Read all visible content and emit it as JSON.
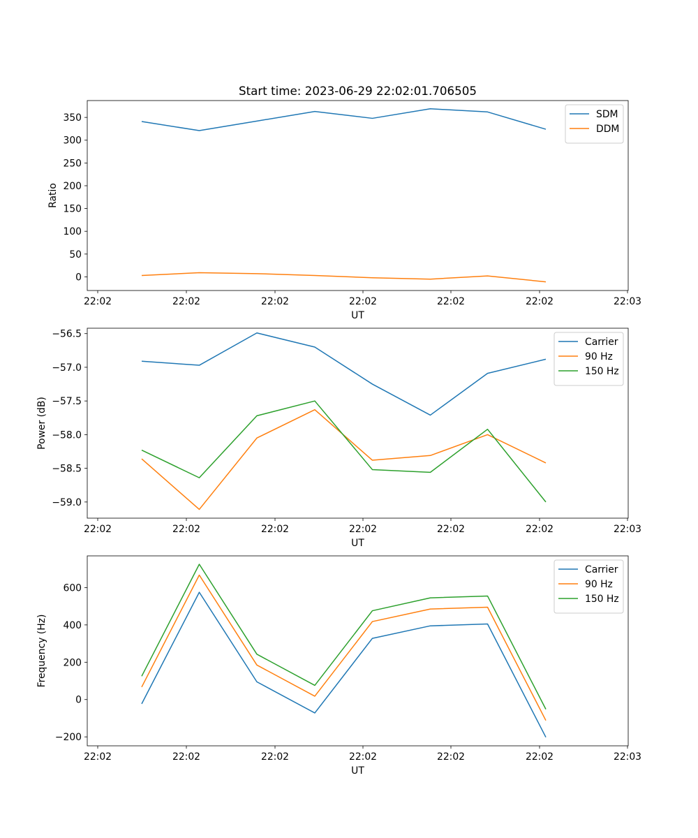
{
  "chart_data": [
    {
      "type": "line",
      "title": "Start time: 2023-06-29 22:02:01.706505",
      "xlabel": "UT",
      "ylabel": "Ratio",
      "x_tick_labels": [
        "22:02",
        "22:02",
        "22:02",
        "22:02",
        "22:02",
        "22:02",
        "22:03"
      ],
      "y_ticks": [
        0,
        50,
        100,
        150,
        200,
        250,
        300,
        350
      ],
      "ylim": [
        -30,
        387
      ],
      "grid": false,
      "legend_position": "top-right",
      "series": [
        {
          "name": "SDM",
          "color": "#1f77b4",
          "values": [
            341,
            321,
            342,
            363,
            348,
            369,
            362,
            324
          ]
        },
        {
          "name": "DDM",
          "color": "#ff7f0e",
          "values": [
            3,
            9,
            7,
            3,
            -2,
            -5,
            2,
            -11
          ]
        }
      ]
    },
    {
      "type": "line",
      "title": "",
      "xlabel": "UT",
      "ylabel": "Power (dB)",
      "x_tick_labels": [
        "22:02",
        "22:02",
        "22:02",
        "22:02",
        "22:02",
        "22:02",
        "22:03"
      ],
      "y_ticks": [
        -59.0,
        -58.5,
        -58.0,
        -57.5,
        -57.0,
        -56.5
      ],
      "y_tick_labels": [
        "−59.0",
        "−58.5",
        "−58.0",
        "−57.5",
        "−57.0",
        "−56.5"
      ],
      "ylim": [
        -59.24,
        -56.42
      ],
      "grid": false,
      "legend_position": "top-right",
      "series": [
        {
          "name": "Carrier",
          "color": "#1f77b4",
          "values": [
            -56.91,
            -56.97,
            -56.49,
            -56.7,
            -57.25,
            -57.71,
            -57.09,
            -56.88
          ]
        },
        {
          "name": "90 Hz",
          "color": "#ff7f0e",
          "values": [
            -58.36,
            -59.11,
            -58.05,
            -57.63,
            -58.38,
            -58.31,
            -58.0,
            -58.42
          ]
        },
        {
          "name": "150 Hz",
          "color": "#2ca02c",
          "values": [
            -58.23,
            -58.64,
            -57.72,
            -57.5,
            -58.52,
            -58.56,
            -57.92,
            -59.0
          ]
        }
      ]
    },
    {
      "type": "line",
      "title": "",
      "xlabel": "UT",
      "ylabel": "Frequency (Hz)",
      "x_tick_labels": [
        "22:02",
        "22:02",
        "22:02",
        "22:02",
        "22:02",
        "22:02",
        "22:03"
      ],
      "y_ticks": [
        -200,
        0,
        200,
        400,
        600
      ],
      "y_tick_labels": [
        "−200",
        "0",
        "200",
        "400",
        "600"
      ],
      "ylim": [
        -248,
        770
      ],
      "grid": false,
      "legend_position": "top-right",
      "series": [
        {
          "name": "Carrier",
          "color": "#1f77b4",
          "values": [
            -23,
            575,
            95,
            -72,
            328,
            395,
            405,
            -202
          ]
        },
        {
          "name": "90 Hz",
          "color": "#ff7f0e",
          "values": [
            67,
            667,
            185,
            18,
            418,
            485,
            495,
            -112
          ]
        },
        {
          "name": "150 Hz",
          "color": "#2ca02c",
          "values": [
            125,
            725,
            243,
            76,
            476,
            545,
            555,
            -52
          ]
        }
      ]
    }
  ]
}
